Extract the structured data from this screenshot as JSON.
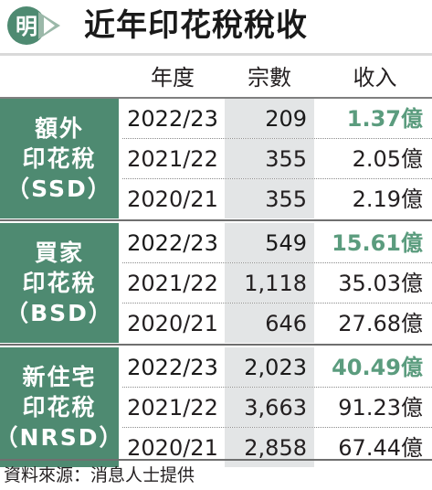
{
  "title": "近年印花稅稅收",
  "logo_char": "明",
  "colors": {
    "accent": "#4e8a71",
    "highlight": "#5b9c7e",
    "count_bg": "#e3e5e6"
  },
  "headers": {
    "year": "年度",
    "count": "宗數",
    "revenue": "收入"
  },
  "groups": [
    {
      "label_lines": [
        "額外",
        "印花稅",
        "（SSD）"
      ],
      "rows": [
        {
          "year": "2022/23",
          "count": "209",
          "revenue": "1.37億"
        },
        {
          "year": "2021/22",
          "count": "355",
          "revenue": "2.05億"
        },
        {
          "year": "2020/21",
          "count": "355",
          "revenue": "2.19億"
        }
      ]
    },
    {
      "label_lines": [
        "買家",
        "印花稅",
        "（BSD）"
      ],
      "rows": [
        {
          "year": "2022/23",
          "count": "549",
          "revenue": "15.61億"
        },
        {
          "year": "2021/22",
          "count": "1,118",
          "revenue": "35.03億"
        },
        {
          "year": "2020/21",
          "count": "646",
          "revenue": "27.68億"
        }
      ]
    },
    {
      "label_lines": [
        "新住宅",
        "印花稅",
        "（NRSD）"
      ],
      "rows": [
        {
          "year": "2022/23",
          "count": "2,023",
          "revenue": "40.49億"
        },
        {
          "year": "2021/22",
          "count": "3,663",
          "revenue": "91.23億"
        },
        {
          "year": "2020/21",
          "count": "2,858",
          "revenue": "67.44億"
        }
      ]
    }
  ],
  "source": "資料來源：消息人士提供",
  "chart_data": {
    "type": "table",
    "title": "近年印花稅稅收",
    "columns": [
      "年度",
      "宗數",
      "收入"
    ],
    "unit": "億",
    "series": [
      {
        "name": "額外印花稅（SSD）",
        "years": [
          "2022/23",
          "2021/22",
          "2020/21"
        ],
        "count": [
          209,
          355,
          355
        ],
        "revenue": [
          1.37,
          2.05,
          2.19
        ]
      },
      {
        "name": "買家印花稅（BSD）",
        "years": [
          "2022/23",
          "2021/22",
          "2020/21"
        ],
        "count": [
          549,
          1118,
          646
        ],
        "revenue": [
          15.61,
          35.03,
          27.68
        ]
      },
      {
        "name": "新住宅印花稅（NRSD）",
        "years": [
          "2022/23",
          "2021/22",
          "2020/21"
        ],
        "count": [
          2023,
          3663,
          2858
        ],
        "revenue": [
          40.49,
          91.23,
          67.44
        ]
      }
    ]
  }
}
